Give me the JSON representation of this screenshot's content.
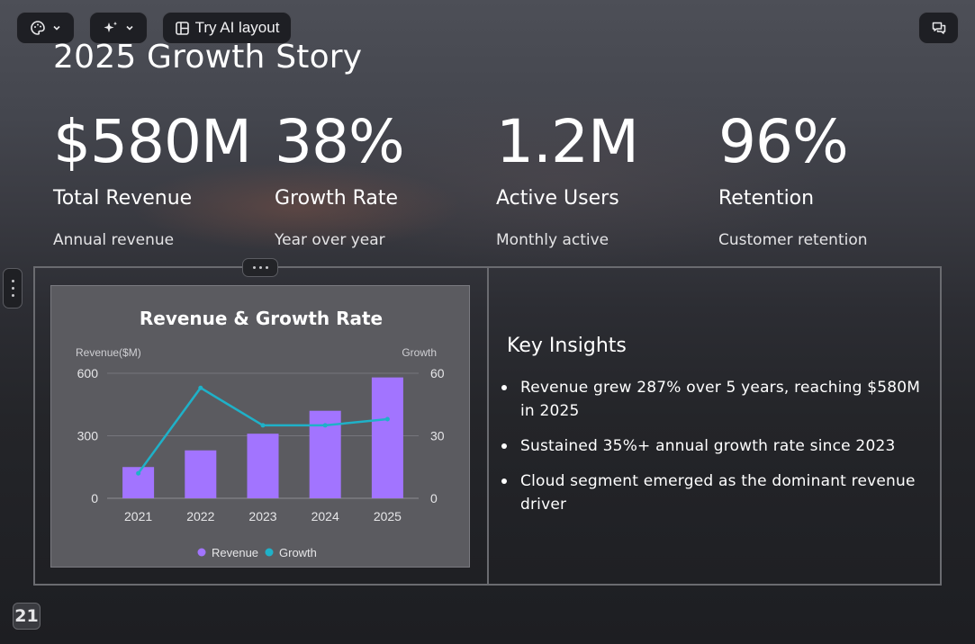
{
  "toolbar": {
    "theme_icon": "palette-icon",
    "ai_icon": "sparkle-icon",
    "layout_icon": "layout-icon",
    "try_ai_label": "Try AI layout",
    "comment_icon": "comment-icon"
  },
  "slide": {
    "title": "2025 Growth Story",
    "stats": [
      {
        "value": "$580M",
        "label": "Total Revenue",
        "sub": "Annual revenue"
      },
      {
        "value": "38%",
        "label": "Growth Rate",
        "sub": "Year over year"
      },
      {
        "value": "1.2M",
        "label": "Active Users",
        "sub": "Monthly active"
      },
      {
        "value": "96%",
        "label": "Retention",
        "sub": "Customer retention"
      }
    ],
    "insights": {
      "title": "Key Insights",
      "items": [
        "Revenue grew 287% over 5 years, reaching $580M in 2025",
        "Sustained 35%+ annual growth rate since 2023",
        "Cloud segment emerged as the dominant revenue driver"
      ]
    },
    "page_number": "21"
  },
  "colors": {
    "revenue": "#a274ff",
    "growth": "#1fb1c8"
  },
  "chart_data": {
    "type": "bar",
    "title": "Revenue & Growth Rate",
    "categories": [
      "2021",
      "2022",
      "2023",
      "2024",
      "2025"
    ],
    "series": [
      {
        "name": "Revenue",
        "type": "bar",
        "axis": "left",
        "values": [
          150,
          230,
          310,
          420,
          580
        ]
      },
      {
        "name": "Growth",
        "type": "line",
        "axis": "right",
        "values": [
          12,
          53,
          35,
          35,
          38
        ]
      }
    ],
    "ylabel": "Revenue($M)",
    "y2label": "Growth",
    "ylim": [
      0,
      600
    ],
    "y2lim": [
      0,
      60
    ],
    "yticks": [
      "0",
      "300",
      "600"
    ],
    "y2ticks": [
      "0",
      "30",
      "60"
    ],
    "grid": true,
    "legend": "bottom"
  }
}
